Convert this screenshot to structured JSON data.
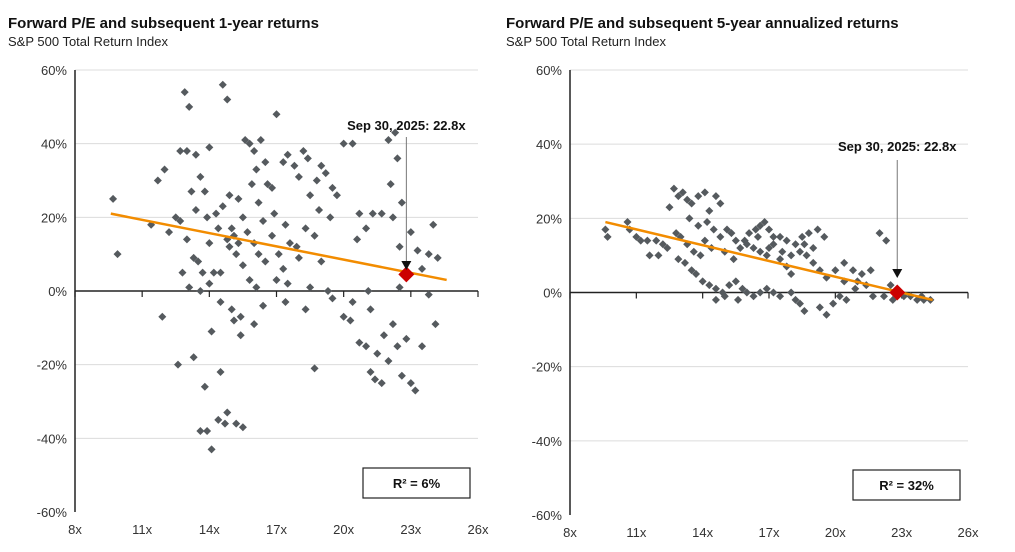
{
  "chart_data": [
    {
      "type": "scatter",
      "title": "Forward P/E and subsequent 1-year returns",
      "subtitle": "S&P 500 Total Return Index",
      "xlabel": "",
      "ylabel": "",
      "xlim": [
        8,
        26
      ],
      "ylim": [
        -60,
        60
      ],
      "xticks": [
        "8x",
        "11x",
        "14x",
        "17x",
        "20x",
        "23x",
        "26x"
      ],
      "xtick_values": [
        8,
        11,
        14,
        17,
        20,
        23,
        26
      ],
      "yticks": [
        "60%",
        "40%",
        "20%",
        "0%",
        "-20%",
        "-40%",
        "-60%"
      ],
      "ytick_values": [
        60,
        40,
        20,
        0,
        -20,
        -40,
        -60
      ],
      "grid": true,
      "annotation": "Sep 30, 2025:  22.8x",
      "highlight": [
        22.8,
        4.5
      ],
      "trendline": [
        [
          9.6,
          21
        ],
        [
          24.6,
          3
        ]
      ],
      "r2_label": "R² = 6%",
      "colors": {
        "points": "#555a5e",
        "trend": "#f28c00",
        "highlight": "#cc0000"
      },
      "points": [
        [
          9.7,
          25
        ],
        [
          9.9,
          10
        ],
        [
          11.7,
          30
        ],
        [
          12,
          33
        ],
        [
          11.4,
          18
        ],
        [
          12.2,
          16
        ],
        [
          12.9,
          54
        ],
        [
          13.1,
          50
        ],
        [
          12.7,
          38
        ],
        [
          13,
          38
        ],
        [
          13.4,
          37
        ],
        [
          13.6,
          31
        ],
        [
          14,
          39
        ],
        [
          14.6,
          56
        ],
        [
          14.8,
          52
        ],
        [
          13.8,
          27
        ],
        [
          13.2,
          27
        ],
        [
          12.5,
          20
        ],
        [
          12.7,
          19
        ],
        [
          13,
          14
        ],
        [
          13.3,
          9
        ],
        [
          13.5,
          8
        ],
        [
          13.7,
          5
        ],
        [
          12.8,
          5
        ],
        [
          13.1,
          1
        ],
        [
          13.6,
          0
        ],
        [
          14,
          2
        ],
        [
          14.2,
          5
        ],
        [
          14,
          13
        ],
        [
          14.3,
          21
        ],
        [
          14.6,
          23
        ],
        [
          14.9,
          26
        ],
        [
          15.1,
          15
        ],
        [
          15.3,
          25
        ],
        [
          15.5,
          20
        ],
        [
          15.6,
          41
        ],
        [
          15.8,
          40
        ],
        [
          16,
          38
        ],
        [
          16.3,
          41
        ],
        [
          16.1,
          33
        ],
        [
          16.5,
          35
        ],
        [
          15.9,
          29
        ],
        [
          16.2,
          24
        ],
        [
          16.6,
          29
        ],
        [
          16.8,
          28
        ],
        [
          17,
          48
        ],
        [
          17.3,
          35
        ],
        [
          17.5,
          37
        ],
        [
          17.8,
          34
        ],
        [
          18,
          31
        ],
        [
          18.2,
          38
        ],
        [
          18.4,
          36
        ],
        [
          18.5,
          26
        ],
        [
          18.8,
          30
        ],
        [
          19,
          34
        ],
        [
          19.2,
          32
        ],
        [
          19.5,
          28
        ],
        [
          19.7,
          26
        ],
        [
          20,
          40
        ],
        [
          20.4,
          40
        ],
        [
          20.7,
          21
        ],
        [
          20.6,
          14
        ],
        [
          21,
          17
        ],
        [
          21.3,
          21
        ],
        [
          21.7,
          21
        ],
        [
          22,
          41
        ],
        [
          22.3,
          43
        ],
        [
          22.4,
          36
        ],
        [
          22.1,
          29
        ],
        [
          22.2,
          20
        ],
        [
          22.6,
          24
        ],
        [
          22.5,
          12
        ],
        [
          23,
          16
        ],
        [
          23.5,
          6
        ],
        [
          24,
          18
        ],
        [
          23.3,
          11
        ],
        [
          23.8,
          10
        ],
        [
          24.2,
          9
        ],
        [
          16,
          13
        ],
        [
          16.2,
          10
        ],
        [
          16.5,
          8
        ],
        [
          16.8,
          15
        ],
        [
          17.1,
          10
        ],
        [
          17.3,
          6
        ],
        [
          17.6,
          13
        ],
        [
          18,
          9
        ],
        [
          18.3,
          17
        ],
        [
          18.7,
          15
        ],
        [
          15.2,
          10
        ],
        [
          15.5,
          7
        ],
        [
          15.8,
          3
        ],
        [
          16.1,
          1
        ],
        [
          15,
          17
        ],
        [
          14.8,
          14
        ],
        [
          14.5,
          5
        ],
        [
          17,
          3
        ],
        [
          17.5,
          2
        ],
        [
          18.5,
          1
        ],
        [
          19,
          8
        ],
        [
          19.3,
          0
        ],
        [
          21.1,
          0
        ],
        [
          22.5,
          1
        ],
        [
          23.8,
          -1
        ],
        [
          14.5,
          -3
        ],
        [
          15,
          -5
        ],
        [
          15.4,
          -7
        ],
        [
          16,
          -9
        ],
        [
          16.4,
          -4
        ],
        [
          17.4,
          -3
        ],
        [
          18.3,
          -5
        ],
        [
          19.5,
          -2
        ],
        [
          20,
          -7
        ],
        [
          20.3,
          -8
        ],
        [
          11.9,
          -7
        ],
        [
          12.6,
          -20
        ],
        [
          13.3,
          -18
        ],
        [
          13.8,
          -26
        ],
        [
          14.1,
          -11
        ],
        [
          14.5,
          -22
        ],
        [
          15.1,
          -8
        ],
        [
          15.4,
          -12
        ],
        [
          13.6,
          -38
        ],
        [
          13.9,
          -38
        ],
        [
          14.1,
          -43
        ],
        [
          14.4,
          -35
        ],
        [
          14.7,
          -36
        ],
        [
          14.8,
          -33
        ],
        [
          15.2,
          -36
        ],
        [
          15.5,
          -37
        ],
        [
          18.7,
          -21
        ],
        [
          20.7,
          -14
        ],
        [
          21,
          -15
        ],
        [
          21.2,
          -22
        ],
        [
          21.4,
          -24
        ],
        [
          21.7,
          -25
        ],
        [
          22,
          -19
        ],
        [
          21.8,
          -12
        ],
        [
          22.2,
          -9
        ],
        [
          22.6,
          -23
        ],
        [
          23,
          -25
        ],
        [
          23.2,
          -27
        ],
        [
          22.8,
          -13
        ],
        [
          23.5,
          -15
        ],
        [
          24.1,
          -9
        ],
        [
          21.5,
          -17
        ],
        [
          22.4,
          -15
        ],
        [
          20.4,
          -3
        ],
        [
          21.2,
          -5
        ],
        [
          13.4,
          22
        ],
        [
          13.9,
          20
        ],
        [
          14.4,
          17
        ],
        [
          14.9,
          12
        ],
        [
          15.3,
          13
        ],
        [
          15.7,
          16
        ],
        [
          16.4,
          19
        ],
        [
          16.9,
          21
        ],
        [
          17.4,
          18
        ],
        [
          17.9,
          12
        ],
        [
          18.9,
          22
        ],
        [
          19.4,
          20
        ]
      ]
    },
    {
      "type": "scatter",
      "title": "Forward P/E and subsequent 5-year annualized returns",
      "subtitle": "S&P 500 Total Return Index",
      "xlabel": "",
      "ylabel": "",
      "xlim": [
        8,
        26
      ],
      "ylim": [
        -60,
        60
      ],
      "xticks": [
        "8x",
        "11x",
        "14x",
        "17x",
        "20x",
        "23x",
        "26x"
      ],
      "xtick_values": [
        8,
        11,
        14,
        17,
        20,
        23,
        26
      ],
      "yticks": [
        "60%",
        "40%",
        "20%",
        "0%",
        "-20%",
        "-40%",
        "-60%"
      ],
      "ytick_values": [
        60,
        40,
        20,
        0,
        -20,
        -40,
        -60
      ],
      "grid": true,
      "annotation": "Sep 30, 2025:  22.8x",
      "highlight": [
        22.8,
        0
      ],
      "trendline": [
        [
          9.6,
          19
        ],
        [
          24.4,
          -2
        ]
      ],
      "r2_label": "R² = 32%",
      "colors": {
        "points": "#555a5e",
        "trend": "#f28c00",
        "highlight": "#cc0000"
      },
      "points": [
        [
          9.6,
          17
        ],
        [
          9.7,
          15
        ],
        [
          10.6,
          19
        ],
        [
          10.7,
          17
        ],
        [
          11,
          15
        ],
        [
          11.2,
          14
        ],
        [
          11.5,
          14
        ],
        [
          11.9,
          14
        ],
        [
          11.6,
          10
        ],
        [
          12.2,
          13
        ],
        [
          12.4,
          12
        ],
        [
          12.5,
          23
        ],
        [
          12.7,
          28
        ],
        [
          12.9,
          26
        ],
        [
          13.1,
          27
        ],
        [
          13.3,
          25
        ],
        [
          13.5,
          24
        ],
        [
          13.8,
          26
        ],
        [
          14.1,
          27
        ],
        [
          14.3,
          22
        ],
        [
          14.6,
          26
        ],
        [
          14.8,
          24
        ],
        [
          12.8,
          16
        ],
        [
          13,
          15
        ],
        [
          13.3,
          13
        ],
        [
          13.6,
          11
        ],
        [
          13.9,
          10
        ],
        [
          14.2,
          19
        ],
        [
          14.5,
          17
        ],
        [
          14.8,
          15
        ],
        [
          15.1,
          17
        ],
        [
          15.3,
          16
        ],
        [
          15.5,
          14
        ],
        [
          15.7,
          12
        ],
        [
          15.9,
          14
        ],
        [
          16.1,
          16
        ],
        [
          16.4,
          17
        ],
        [
          16.6,
          18
        ],
        [
          16.8,
          19
        ],
        [
          17,
          17
        ],
        [
          17.2,
          15
        ],
        [
          16.3,
          12
        ],
        [
          16.6,
          11
        ],
        [
          16.9,
          10
        ],
        [
          17.2,
          13
        ],
        [
          17.5,
          15
        ],
        [
          17.8,
          14
        ],
        [
          18.2,
          13
        ],
        [
          18.5,
          15
        ],
        [
          18.8,
          16
        ],
        [
          19.2,
          17
        ],
        [
          19.5,
          15
        ],
        [
          17.5,
          9
        ],
        [
          17.8,
          7
        ],
        [
          18,
          5
        ],
        [
          18.4,
          11
        ],
        [
          18.7,
          10
        ],
        [
          19,
          8
        ],
        [
          19.3,
          6
        ],
        [
          19.6,
          4
        ],
        [
          20,
          6
        ],
        [
          20.4,
          8
        ],
        [
          20.8,
          6
        ],
        [
          21.2,
          5
        ],
        [
          21.6,
          6
        ],
        [
          21.4,
          2
        ],
        [
          20.9,
          1
        ],
        [
          22,
          16
        ],
        [
          22.3,
          14
        ],
        [
          22.5,
          2
        ],
        [
          22.8,
          1
        ],
        [
          23.4,
          -1
        ],
        [
          23.7,
          -2
        ],
        [
          24,
          -2
        ],
        [
          24.3,
          -2
        ],
        [
          22.6,
          -2
        ],
        [
          22.2,
          -1
        ],
        [
          21.7,
          -1
        ],
        [
          20.5,
          -2
        ],
        [
          13.7,
          5
        ],
        [
          14,
          3
        ],
        [
          14.3,
          2
        ],
        [
          14.6,
          1
        ],
        [
          14.9,
          0
        ],
        [
          15.2,
          2
        ],
        [
          15.5,
          3
        ],
        [
          15.8,
          1
        ],
        [
          16,
          0
        ],
        [
          16.3,
          -1
        ],
        [
          16.6,
          0
        ],
        [
          16.9,
          1
        ],
        [
          17.2,
          0
        ],
        [
          17.5,
          -1
        ],
        [
          18,
          0
        ],
        [
          18.4,
          -3
        ],
        [
          18.6,
          -5
        ],
        [
          18.2,
          -2
        ],
        [
          19.3,
          -4
        ],
        [
          19.6,
          -6
        ],
        [
          19.9,
          -3
        ],
        [
          20.2,
          -1
        ],
        [
          14.6,
          -2
        ],
        [
          15,
          -1
        ],
        [
          13.5,
          6
        ],
        [
          13.2,
          8
        ],
        [
          12.9,
          9
        ],
        [
          12,
          10
        ],
        [
          15.6,
          -2
        ],
        [
          13.4,
          20
        ],
        [
          13.8,
          18
        ],
        [
          14.1,
          14
        ],
        [
          14.4,
          12
        ],
        [
          15.0,
          11
        ],
        [
          15.4,
          9
        ],
        [
          16.0,
          13
        ],
        [
          16.5,
          15
        ],
        [
          17.0,
          12
        ],
        [
          17.6,
          11
        ],
        [
          18.0,
          10
        ],
        [
          18.6,
          13
        ],
        [
          19.0,
          12
        ],
        [
          20.4,
          3
        ],
        [
          21.0,
          3
        ],
        [
          23.1,
          -1
        ],
        [
          23.9,
          -1
        ]
      ]
    }
  ]
}
